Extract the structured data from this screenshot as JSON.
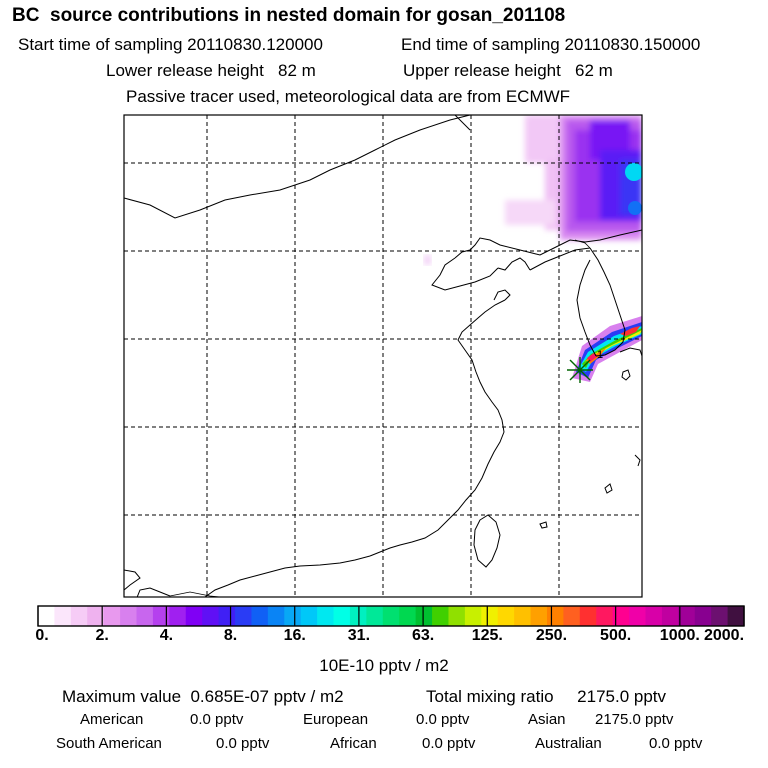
{
  "header": {
    "title": "BC  source contributions in nested domain for gosan_201108",
    "start_label": "Start time of sampling 20110830.120000",
    "end_label": "End time of sampling 20110830.150000",
    "lower_label": "Lower release height   82 m",
    "upper_label": "Upper release height   62 m",
    "note": "Passive tracer used, meteorological data are from ECMWF"
  },
  "colorbar": {
    "unit": "10E-10 pptv / m2",
    "ticks": [
      "0.",
      "2.",
      "4.",
      "8.",
      "16.",
      "31.",
      "63.",
      "125.",
      "250.",
      "500.",
      "1000.",
      "2000."
    ],
    "colors": [
      "#ffffff",
      "#fbe6fb",
      "#f6ccf6",
      "#efb2ef",
      "#e899ee",
      "#d880ee",
      "#c866ee",
      "#b540ee",
      "#a020f0",
      "#8000f5",
      "#6010f5",
      "#4020f5",
      "#2a3cf5",
      "#1060f5",
      "#0a84f5",
      "#08a8f5",
      "#00c8f8",
      "#00e8f0",
      "#00ffe6",
      "#00f0c0",
      "#00e898",
      "#00e070",
      "#00d850",
      "#00c030",
      "#40d000",
      "#90e000",
      "#c8f000",
      "#f0f000",
      "#ffd800",
      "#ffc000",
      "#ffa000",
      "#ff8000",
      "#ff6020",
      "#ff3030",
      "#ff1860",
      "#ff0090",
      "#f000a8",
      "#d800a8",
      "#c000a0",
      "#a00098",
      "#880090",
      "#6c1070",
      "#401040"
    ]
  },
  "summary": {
    "max_value": "Maximum value  0.685E-07 pptv / m2",
    "total_mixing": "Total mixing ratio     2175.0 pptv",
    "regions": [
      {
        "name": "American",
        "value": "0.0 pptv"
      },
      {
        "name": "European",
        "value": "0.0 pptv"
      },
      {
        "name": "Asian",
        "value": "2175.0 pptv"
      },
      {
        "name": "South American",
        "value": "0.0 pptv"
      },
      {
        "name": "African",
        "value": "0.0 pptv"
      },
      {
        "name": "Australian",
        "value": "0.0 pptv"
      }
    ]
  },
  "map": {
    "release_marker_color": "#006400",
    "plume_high_color": "#ff0000"
  }
}
